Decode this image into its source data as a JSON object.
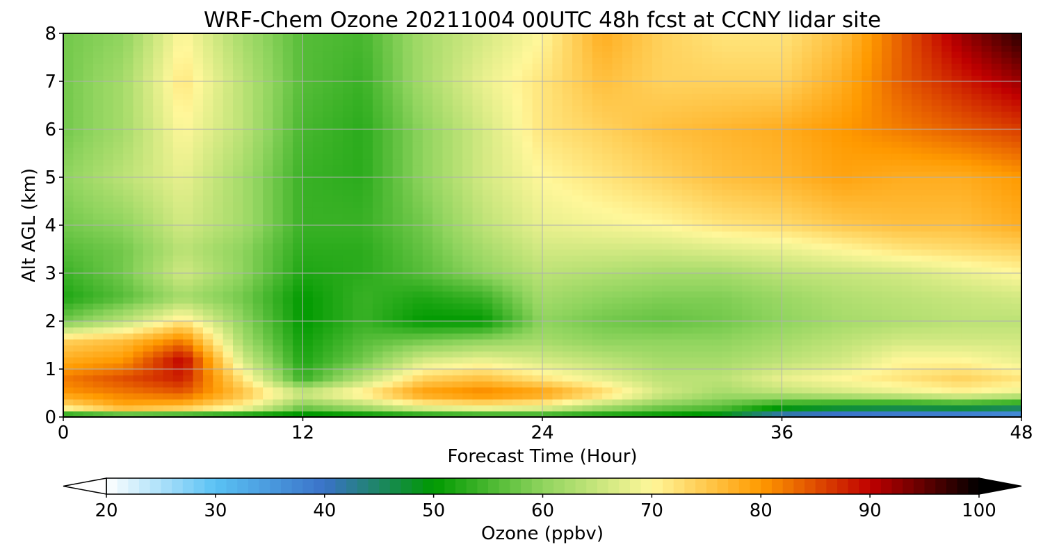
{
  "chart_data": {
    "type": "heatmap",
    "title": "WRF-Chem Ozone  20211004 00UTC 48h fcst at CCNY lidar site",
    "xlabel": "Forecast Time (Hour)",
    "ylabel": "Alt AGL (km)",
    "xlim": [
      0,
      48
    ],
    "ylim": [
      0,
      8
    ],
    "xticks": [
      "0",
      "12",
      "24",
      "36",
      "48"
    ],
    "yticks": [
      "0",
      "1",
      "2",
      "3",
      "4",
      "5",
      "6",
      "7",
      "8"
    ],
    "grid": true,
    "x_hours": [
      0,
      3,
      6,
      9,
      12,
      15,
      18,
      21,
      24,
      27,
      30,
      33,
      36,
      39,
      42,
      45,
      48
    ],
    "y_km": [
      0.0,
      0.2,
      0.5,
      0.8,
      1.2,
      1.6,
      2.0,
      2.5,
      3.0,
      3.5,
      4.0,
      5.0,
      6.0,
      7.0,
      8.0
    ],
    "ozone_ppbv": [
      [
        46,
        48,
        47,
        46,
        46,
        47,
        48,
        49,
        50,
        49,
        48,
        46,
        38,
        36,
        35,
        34,
        33
      ],
      [
        72,
        78,
        76,
        70,
        58,
        62,
        68,
        70,
        68,
        62,
        58,
        56,
        50,
        48,
        47,
        48,
        46
      ],
      [
        80,
        82,
        84,
        76,
        66,
        72,
        80,
        82,
        80,
        74,
        66,
        62,
        64,
        66,
        68,
        70,
        68
      ],
      [
        82,
        85,
        88,
        72,
        54,
        64,
        74,
        76,
        72,
        68,
        64,
        64,
        68,
        70,
        72,
        74,
        72
      ],
      [
        78,
        80,
        90,
        66,
        52,
        58,
        66,
        68,
        66,
        64,
        62,
        62,
        64,
        66,
        70,
        70,
        68
      ],
      [
        74,
        76,
        82,
        62,
        51,
        56,
        58,
        60,
        62,
        60,
        60,
        60,
        62,
        64,
        66,
        66,
        66
      ],
      [
        58,
        64,
        72,
        60,
        50,
        54,
        50,
        50,
        60,
        58,
        57,
        58,
        60,
        62,
        63,
        64,
        64
      ],
      [
        52,
        56,
        62,
        58,
        50,
        54,
        52,
        54,
        62,
        60,
        59,
        59,
        61,
        63,
        64,
        65,
        66
      ],
      [
        54,
        58,
        66,
        60,
        52,
        53,
        56,
        60,
        64,
        63,
        62,
        62,
        64,
        65,
        66,
        68,
        70
      ],
      [
        56,
        58,
        64,
        60,
        53,
        53,
        57,
        62,
        66,
        66,
        66,
        67,
        68,
        70,
        72,
        73,
        74
      ],
      [
        58,
        60,
        66,
        62,
        54,
        54,
        58,
        64,
        68,
        69,
        70,
        72,
        73,
        75,
        76,
        76,
        78
      ],
      [
        60,
        64,
        68,
        62,
        54,
        53,
        60,
        66,
        70,
        72,
        74,
        76,
        77,
        79,
        78,
        78,
        80
      ],
      [
        58,
        62,
        70,
        64,
        55,
        53,
        60,
        66,
        72,
        74,
        76,
        77,
        78,
        80,
        82,
        84,
        86
      ],
      [
        58,
        62,
        72,
        64,
        56,
        54,
        62,
        68,
        72,
        76,
        74,
        74,
        74,
        78,
        84,
        88,
        92
      ],
      [
        58,
        60,
        70,
        62,
        56,
        55,
        62,
        66,
        70,
        78,
        74,
        72,
        72,
        76,
        84,
        92,
        98
      ]
    ],
    "colorbar": {
      "label": "Ozone  (ppbv)",
      "min": 20,
      "max": 100,
      "ticks": [
        "20",
        "30",
        "40",
        "50",
        "60",
        "70",
        "80",
        "90",
        "100"
      ],
      "extend": "both",
      "colors": [
        "#ffffff",
        "#5ac2f4",
        "#3a72c8",
        "#009a00",
        "#8fd45e",
        "#fff79a",
        "#ff9a00",
        "#c00000",
        "#000000"
      ]
    }
  }
}
